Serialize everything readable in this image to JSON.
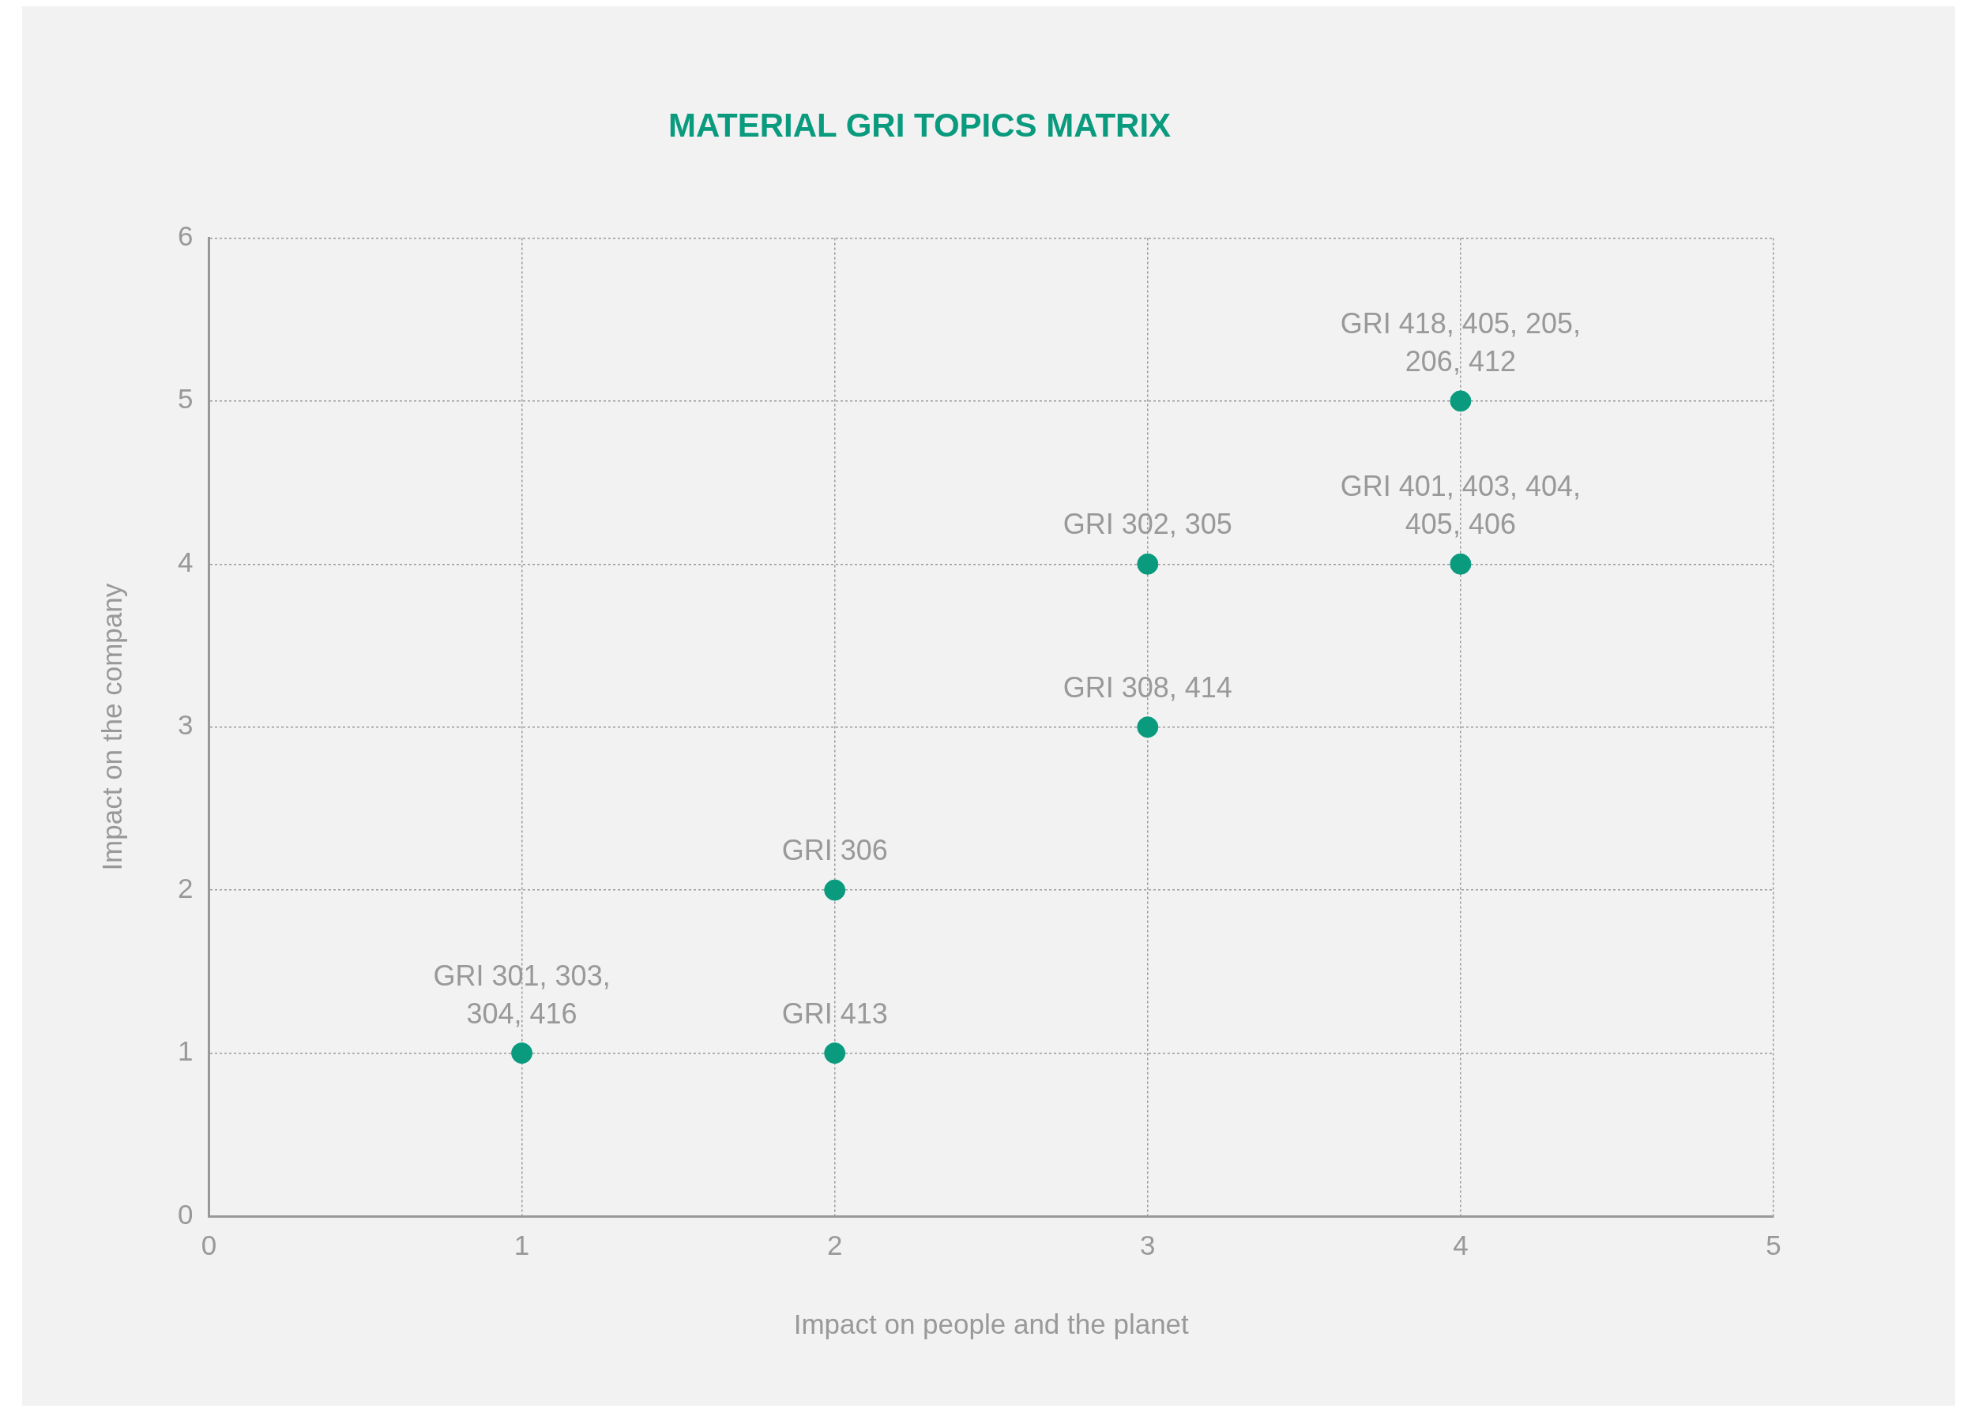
{
  "chart_data": {
    "type": "scatter",
    "title": "MATERIAL GRI TOPICS MATRIX",
    "xlabel": "Impact on people and the planet",
    "ylabel": "Impact on the company",
    "x": [
      1,
      2,
      2,
      3,
      3,
      4,
      4
    ],
    "series": [
      {
        "color": "#0a9b7f",
        "values": [
          1,
          1,
          2,
          3,
          4,
          4,
          5
        ]
      }
    ],
    "xlim": [
      0,
      5
    ],
    "xticks": [
      0,
      1,
      2,
      3,
      4,
      5
    ],
    "ylim": [
      0,
      6
    ],
    "yticks": [
      0,
      1,
      2,
      3,
      4,
      5,
      6
    ],
    "grid": true,
    "legend": false,
    "marker": "circle",
    "annotations": [
      {
        "text": "GRI 301, 303,\n304, 416",
        "x": 1,
        "y": 1
      },
      {
        "text": "GRI 413",
        "x": 2,
        "y": 1
      },
      {
        "text": "GRI 306",
        "x": 2,
        "y": 2
      },
      {
        "text": "GRI 308, 414",
        "x": 3,
        "y": 3
      },
      {
        "text": "GRI 302, 305",
        "x": 3,
        "y": 4
      },
      {
        "text": "GRI 401, 403, 404,\n405, 406",
        "x": 4,
        "y": 4
      },
      {
        "text": "GRI 418, 405, 205,\n206, 412",
        "x": 4,
        "y": 5
      }
    ]
  }
}
